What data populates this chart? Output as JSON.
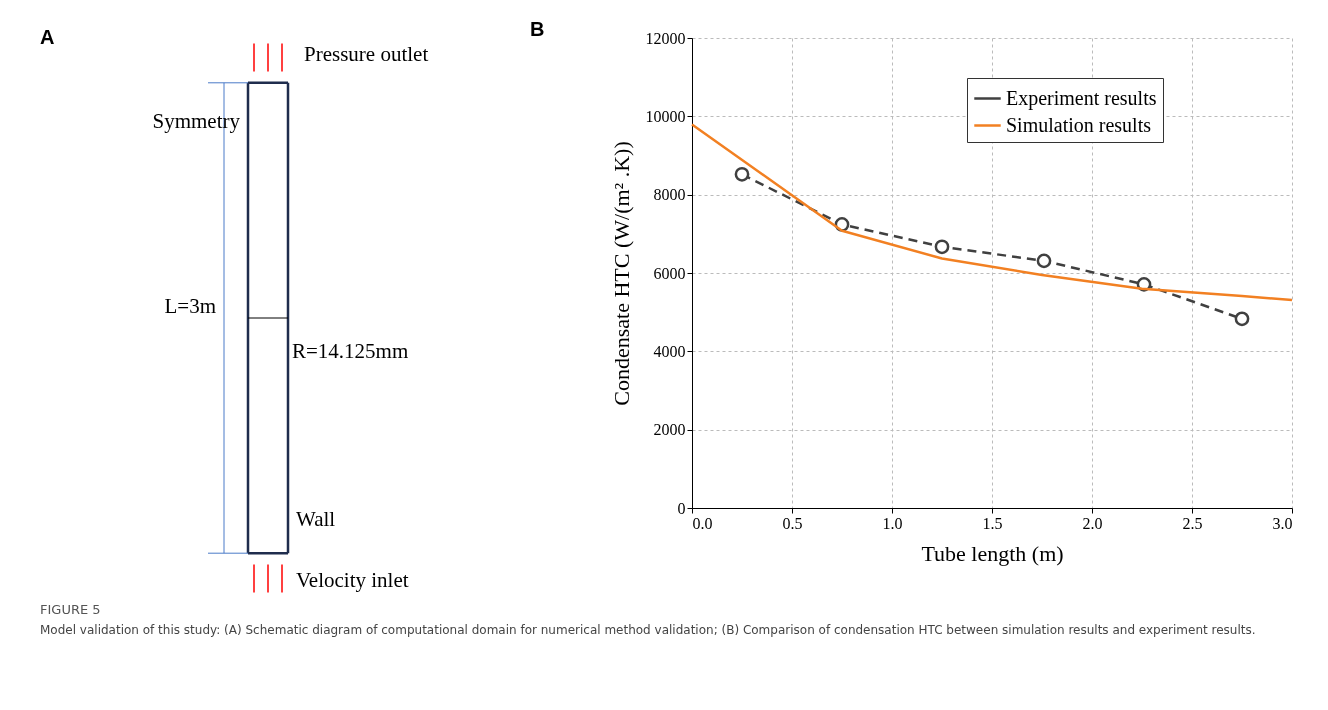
{
  "chart_data": [
    {
      "type": "other",
      "title": "A",
      "annotations": [
        "Pressure outlet",
        "Symmetry",
        "L=3m",
        "R=14.125mm",
        "Wall",
        "Velocity inlet"
      ]
    },
    {
      "type": "line",
      "title": "B",
      "xlabel": "Tube length (m)",
      "ylabel": "Condensate HTC (W/(m² .K))",
      "xlim": [
        0,
        3
      ],
      "xticks": [
        {
          "value": 0,
          "label": "0.0"
        },
        0.5,
        {
          "value": 1,
          "label": "1.0"
        },
        1.5,
        {
          "value": 2,
          "label": "2.0"
        },
        2.5,
        {
          "value": 3,
          "label": "3.0"
        }
      ],
      "ylim": [
        0,
        12000
      ],
      "yticks": [
        0,
        2000,
        4000,
        6000,
        8000,
        10000,
        12000
      ],
      "grid": true,
      "legend": "top right",
      "series": [
        {
          "name": "Experiment results",
          "color": "#404040",
          "marker": "circle",
          "line_style": "dashed",
          "x": [
            0.25,
            0.75,
            1.25,
            1.76,
            2.26,
            2.75
          ],
          "values": [
            8520,
            7240,
            6670,
            6310,
            5710,
            4830
          ]
        },
        {
          "name": "Simulation results",
          "color": "#f28022",
          "marker": "none",
          "line_style": "solid",
          "x": [
            0,
            0.75,
            1.25,
            1.75,
            2.25,
            2.75,
            3.0
          ],
          "values": [
            9790,
            7080,
            6370,
            5950,
            5600,
            5410,
            5310
          ]
        }
      ],
      "annotations": [
        "FIGURE 5",
        "Model validation of this study: (A) Schematic diagram of computational domain for numerical method validation; (B) Comparison of condensation HTC between simulation results and experiment results."
      ]
    }
  ]
}
